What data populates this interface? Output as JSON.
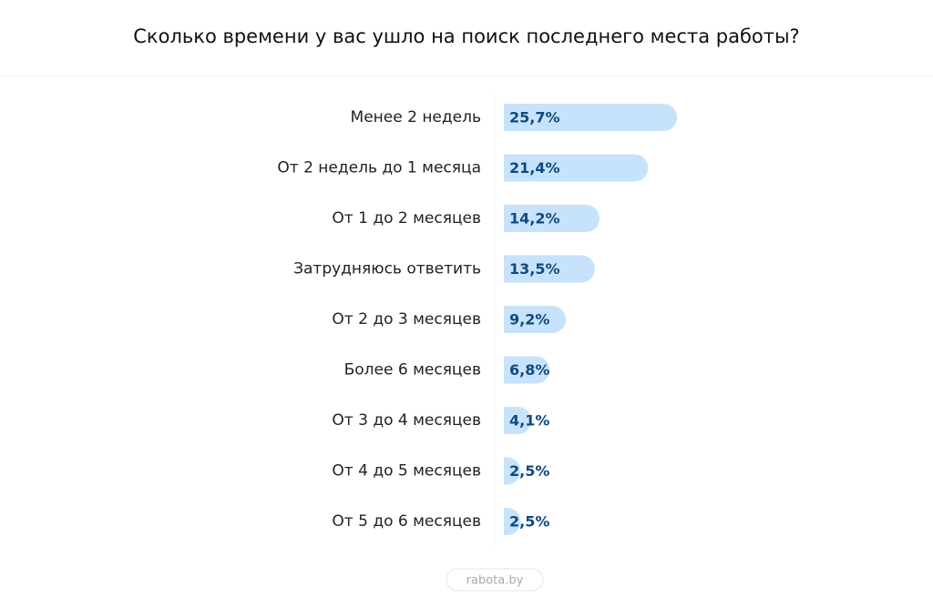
{
  "chart_data": {
    "type": "bar",
    "orientation": "horizontal",
    "title": "Сколько времени у вас ушло на поиск последнего места работы?",
    "categories": [
      "Менее 2 недель",
      "От 2 недель до 1  месяца",
      "От 1 до 2 месяцев",
      "Затрудняюсь ответить",
      "От 2 до 3 месяцев",
      "Более 6 месяцев",
      "От 3 до 4 месяцев",
      "От 4 до 5 месяцев",
      "От 5 до 6 месяцев"
    ],
    "values": [
      25.7,
      21.4,
      14.2,
      13.5,
      9.2,
      6.8,
      4.1,
      2.5,
      2.5
    ],
    "value_labels": [
      "25,7%",
      "21,4%",
      "14,2%",
      "13,5%",
      "9,2%",
      "6,8%",
      "4,1%",
      "2,5%",
      "2,5%"
    ],
    "color": "#c6e3fb",
    "source": "rabota.by"
  }
}
